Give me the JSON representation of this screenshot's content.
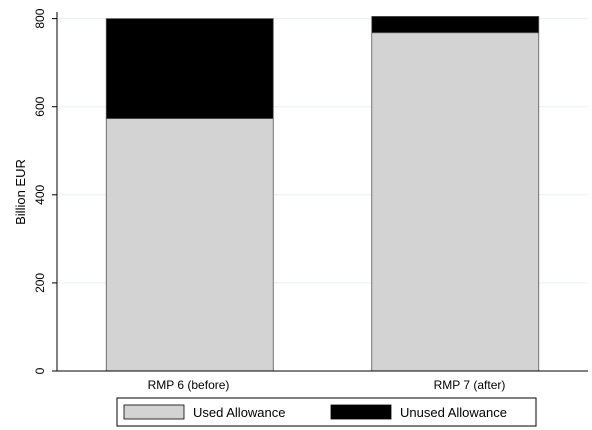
{
  "chart_data": {
    "type": "bar",
    "stacked": true,
    "title": "",
    "xlabel": "",
    "ylabel": "Billion EUR",
    "ylim": [
      0,
      815
    ],
    "yticks": [
      0,
      200,
      400,
      600,
      800
    ],
    "grid": true,
    "categories": [
      "RMP 6 (before)",
      "RMP 7 (after)"
    ],
    "series": [
      {
        "name": "Used Allowance",
        "color": "#d3d3d3",
        "values": [
          573,
          768
        ]
      },
      {
        "name": "Unused Allowance",
        "color": "#000000",
        "values": [
          227,
          37
        ]
      }
    ],
    "legend": {
      "position": "bottom",
      "entries": [
        "Used Allowance",
        "Unused Allowance"
      ]
    }
  }
}
